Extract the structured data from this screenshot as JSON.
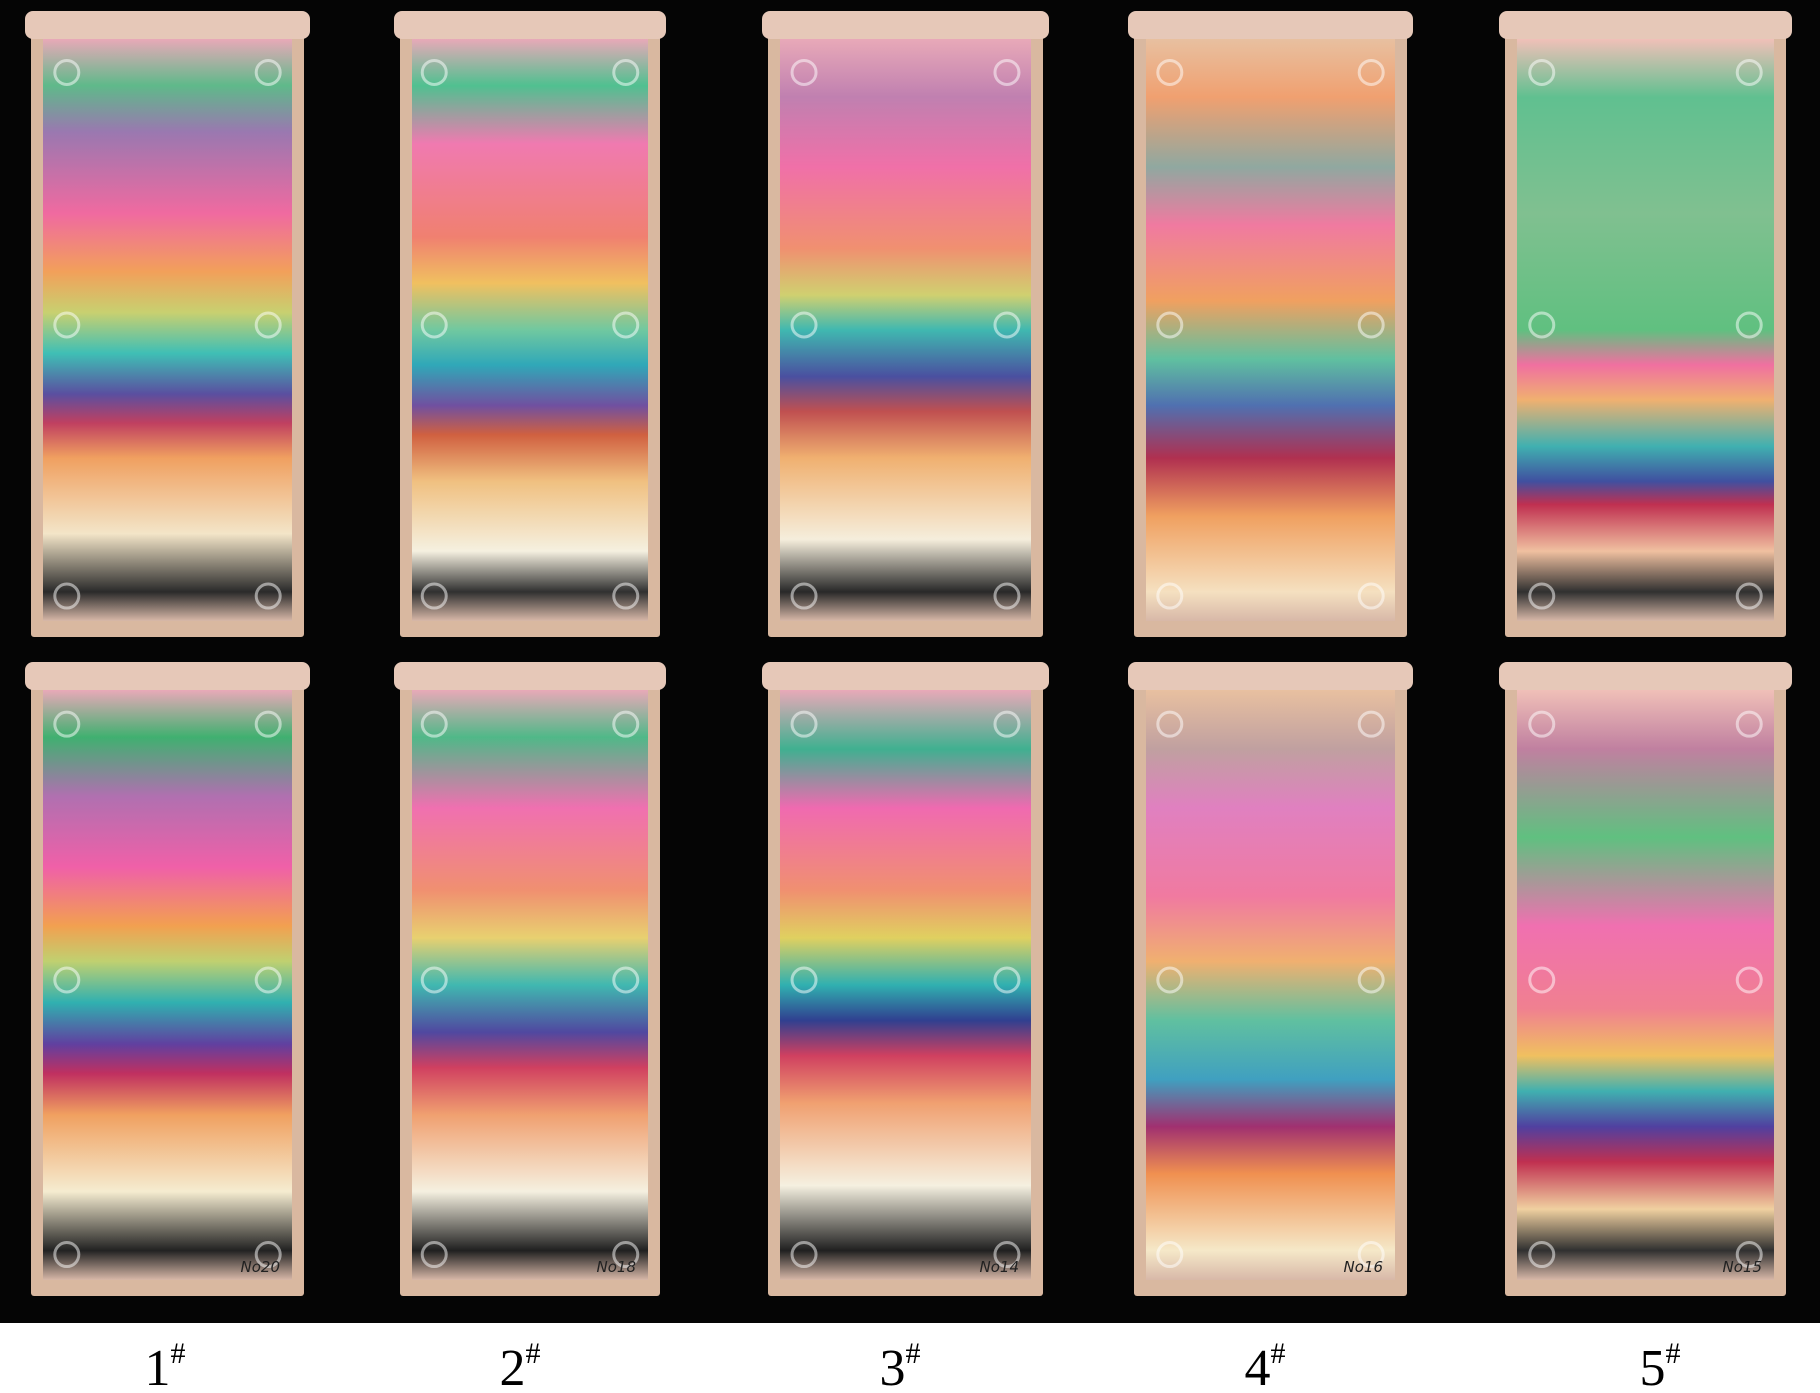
{
  "labels": [
    {
      "number": "1",
      "mark": "#"
    },
    {
      "number": "2",
      "mark": "#"
    },
    {
      "number": "3",
      "mark": "#"
    },
    {
      "number": "4",
      "mark": "#"
    },
    {
      "number": "5",
      "mark": "#"
    }
  ],
  "notes": [
    "No20",
    "No18",
    "No14",
    "No16",
    "No15"
  ]
}
